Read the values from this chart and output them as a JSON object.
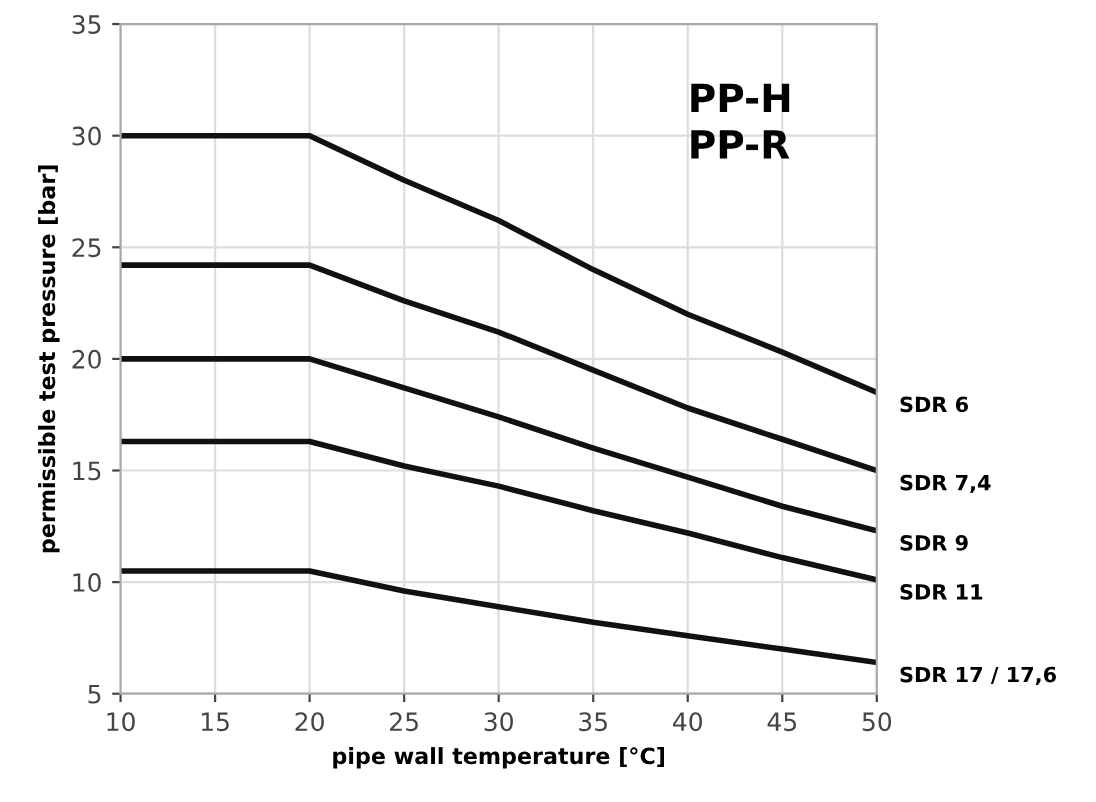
{
  "chart_data": {
    "type": "line",
    "xlabel": "pipe wall temperature [°C]",
    "ylabel": "permissible test pressure [bar]",
    "annotations": [
      "PP-H\nPP-R"
    ],
    "x": [
      10,
      20,
      25,
      30,
      35,
      40,
      45,
      50
    ],
    "series": [
      {
        "name": "SDR 6",
        "color": "#111111",
        "values": [
          30,
          30,
          28,
          26.2,
          24,
          22,
          20.3,
          18.5
        ]
      },
      {
        "name": "SDR 7,4",
        "color": "#111111",
        "values": [
          24.2,
          24.2,
          22.6,
          21.2,
          19.5,
          17.8,
          16.4,
          15
        ]
      },
      {
        "name": "SDR 9",
        "color": "#111111",
        "values": [
          20,
          20,
          18.7,
          17.4,
          16,
          14.7,
          13.4,
          12.3
        ]
      },
      {
        "name": "SDR 11",
        "color": "#111111",
        "values": [
          16.3,
          16.3,
          15.2,
          14.3,
          13.2,
          12.2,
          11.1,
          10.1
        ]
      },
      {
        "name": "SDR 17 / 17,6",
        "color": "#111111",
        "values": [
          10.5,
          10.5,
          9.6,
          8.9,
          8.2,
          7.6,
          7,
          6.4
        ]
      }
    ],
    "xlim": [
      10,
      50
    ],
    "ylim": [
      5,
      35
    ],
    "xticks": [
      10,
      15,
      20,
      25,
      30,
      35,
      40,
      45,
      50
    ],
    "yticks": [
      5,
      10,
      15,
      20,
      25,
      30,
      35
    ],
    "grid": true,
    "legend": false,
    "marker": "none",
    "line_style": "solid"
  }
}
